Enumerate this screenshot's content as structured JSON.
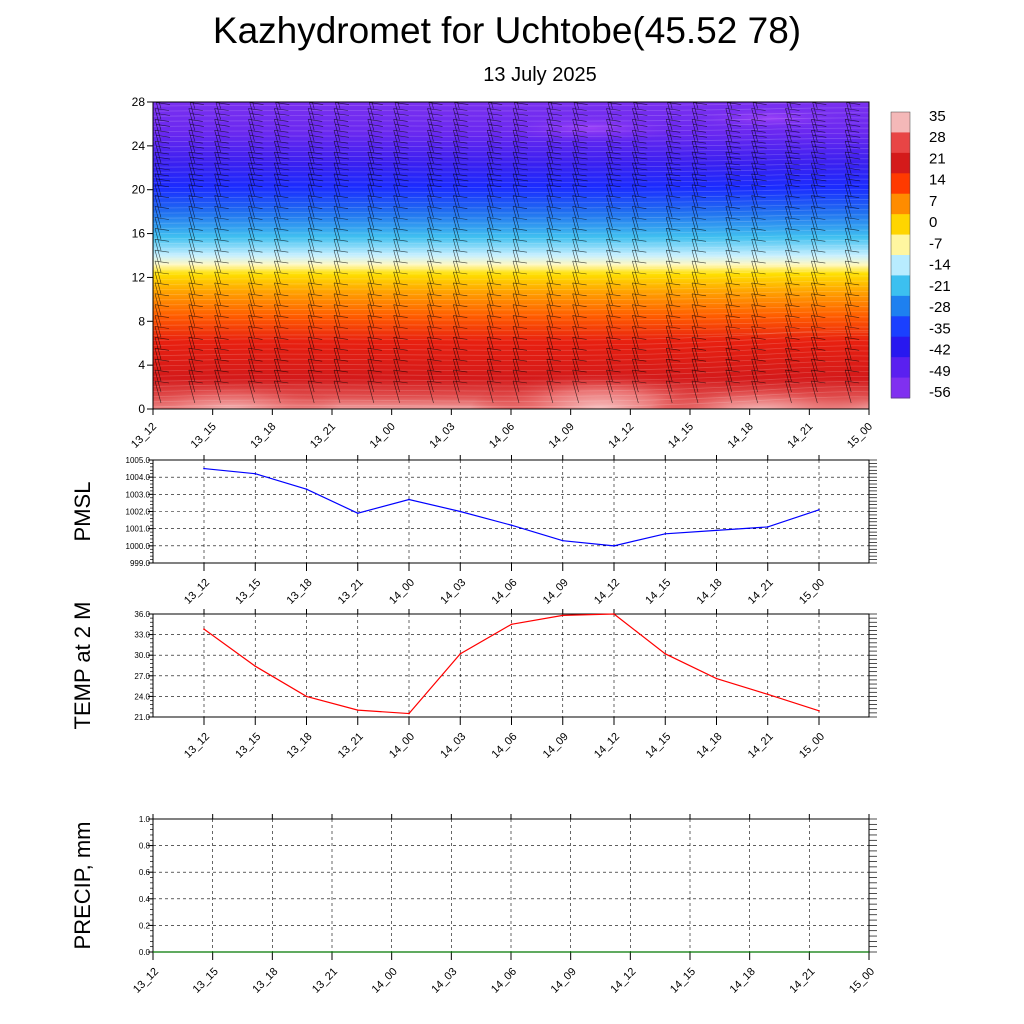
{
  "header": {
    "title": "Kazhydromet for Uchtobe(45.52 78)",
    "subtitle": "13 July 2025"
  },
  "chart_data": [
    {
      "type": "heatmap",
      "name": "vertical-cross-section",
      "x_tick_labels": [
        "13_12",
        "13_15",
        "13_18",
        "13_21",
        "14_00",
        "14_03",
        "14_06",
        "14_09",
        "14_12",
        "14_15",
        "14_18",
        "14_21",
        "15_00"
      ],
      "y_tick_labels": [
        "0",
        "4",
        "8",
        "12",
        "16",
        "20",
        "24",
        "28"
      ],
      "ylim": [
        0,
        28
      ],
      "colorbar_labels": [
        "35",
        "28",
        "21",
        "14",
        "7",
        "0",
        "-7",
        "-14",
        "-21",
        "-28",
        "-35",
        "-42",
        "-49",
        "-56"
      ],
      "colorbar_colors": [
        "#f4b8b8",
        "#e84545",
        "#d41a1a",
        "#ff3a00",
        "#ff8c00",
        "#ffd500",
        "#fff6a0",
        "#b8ecff",
        "#3cc0f0",
        "#1e80f0",
        "#1a40ff",
        "#2818f0",
        "#5a20f0",
        "#8030f0"
      ],
      "description_values": "temperature field with wind barbs"
    },
    {
      "type": "line",
      "name": "pmsl",
      "ylabel": "PMSL",
      "categories": [
        "13_12",
        "13_15",
        "13_18",
        "13_21",
        "14_00",
        "14_03",
        "14_06",
        "14_09",
        "14_12",
        "14_15",
        "14_18",
        "14_21",
        "15_00"
      ],
      "values": [
        1004.5,
        1004.2,
        1003.3,
        1001.9,
        1002.7,
        1002.0,
        1001.2,
        1000.3,
        1000.0,
        1000.7,
        1000.9,
        1001.1,
        1002.1
      ],
      "ylim": [
        999.0,
        1005.0
      ],
      "y_tick_labels": [
        "999.0",
        "1000.0",
        "1001.0",
        "1002.0",
        "1003.0",
        "1004.0",
        "1005.0"
      ],
      "color": "#0000ff",
      "grid": true
    },
    {
      "type": "line",
      "name": "temp-2m",
      "ylabel": "TEMP at 2 M",
      "categories": [
        "13_12",
        "13_15",
        "13_18",
        "13_21",
        "14_00",
        "14_03",
        "14_06",
        "14_09",
        "14_12",
        "14_15",
        "14_18",
        "14_21",
        "15_00"
      ],
      "values": [
        33.8,
        28.4,
        24.0,
        22.0,
        21.5,
        30.2,
        34.5,
        35.8,
        36.0,
        30.2,
        26.6,
        24.3,
        21.9
      ],
      "ylim": [
        21.0,
        36.0
      ],
      "y_tick_labels": [
        "21.0",
        "24.0",
        "27.0",
        "30.0",
        "33.0",
        "36.0"
      ],
      "color": "#ff0000",
      "grid": true
    },
    {
      "type": "bar",
      "name": "precip",
      "ylabel": "PRECIP, mm",
      "categories": [
        "13_12",
        "13_15",
        "13_18",
        "13_21",
        "14_00",
        "14_03",
        "14_06",
        "14_09",
        "14_12",
        "14_15",
        "14_18",
        "14_21",
        "15_00"
      ],
      "values": [
        0,
        0,
        0,
        0,
        0,
        0,
        0,
        0,
        0,
        0,
        0,
        0,
        0
      ],
      "ylim": [
        0.0,
        1.0
      ],
      "y_tick_labels": [
        "0.0",
        "0.2",
        "0.4",
        "0.6",
        "0.8",
        "1.0"
      ],
      "color": "#007700",
      "grid": true
    }
  ]
}
